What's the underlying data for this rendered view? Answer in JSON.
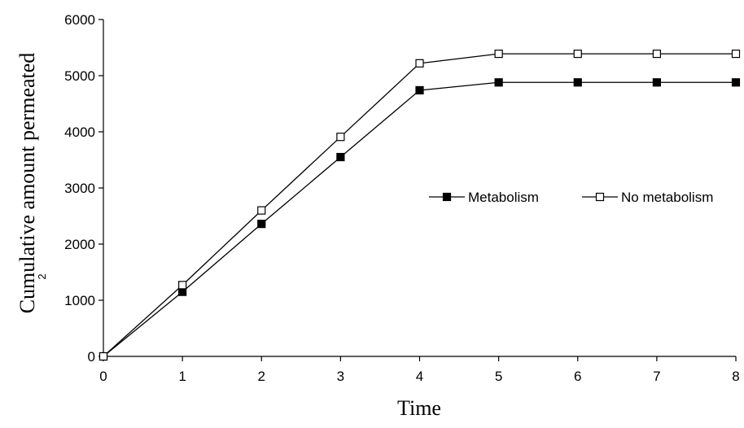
{
  "chart_data": {
    "type": "line",
    "title": "",
    "xlabel": "Time",
    "ylabel": "Cumulative amount permeated",
    "ylabel_fragment": "2",
    "x": [
      0,
      1,
      2,
      3,
      4,
      5,
      6,
      7,
      8
    ],
    "xlim": [
      0,
      8
    ],
    "ylim": [
      0,
      6000
    ],
    "xticks": [
      "0",
      "1",
      "2",
      "3",
      "4",
      "5",
      "6",
      "7",
      "8"
    ],
    "yticks": [
      "0",
      "1000",
      "2000",
      "3000",
      "4000",
      "5000",
      "6000"
    ],
    "grid": false,
    "legend_position": "right-middle",
    "series": [
      {
        "name": "Metabolism",
        "marker": "filled-square",
        "color": "#000000",
        "values": [
          0,
          1150,
          2360,
          3550,
          4740,
          4880,
          4880,
          4880,
          4880
        ]
      },
      {
        "name": "No metabolism",
        "marker": "open-square",
        "color": "#000000",
        "values": [
          0,
          1270,
          2600,
          3910,
          5220,
          5390,
          5390,
          5390,
          5390
        ]
      }
    ]
  }
}
